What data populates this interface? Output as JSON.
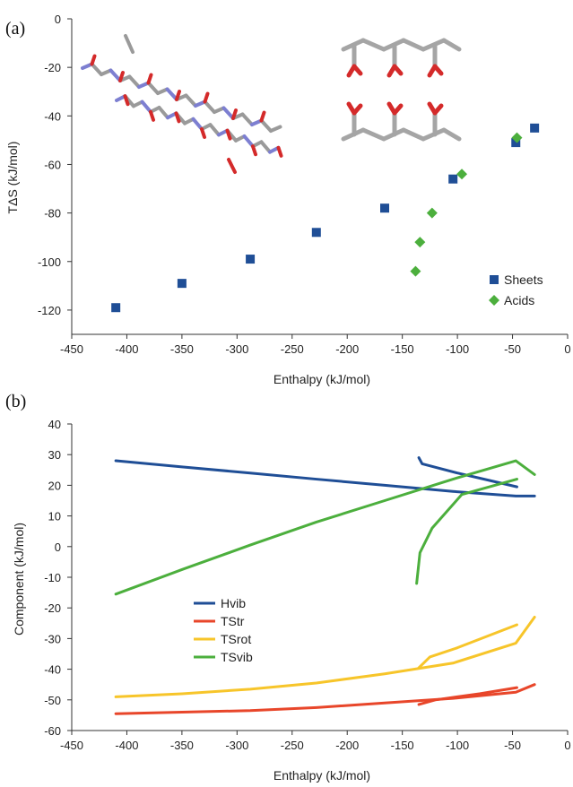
{
  "panels": [
    {
      "label": "(a)",
      "chart_data": {
        "type": "scatter",
        "title": "",
        "xlabel": "Enthalpy (kJ/mol)",
        "ylabel": "TΔS (kJ/mol)",
        "xlim": [
          -450,
          0
        ],
        "ylim": [
          -130,
          0
        ],
        "xticks": [
          -450,
          -400,
          -350,
          -300,
          -250,
          -200,
          -150,
          -100,
          -50,
          0
        ],
        "yticks": [
          0,
          -20,
          -40,
          -60,
          -80,
          -100,
          -120
        ],
        "grid": false,
        "legend_position": "lower-right",
        "series": [
          {
            "name": "Sheets",
            "marker": "square",
            "color": "#1f4e96",
            "points": [
              [
                -410,
                -119
              ],
              [
                -350,
                -109
              ],
              [
                -288,
                -99
              ],
              [
                -228,
                -88
              ],
              [
                -166,
                -78
              ],
              [
                -104,
                -66
              ],
              [
                -47,
                -51
              ],
              [
                -30,
                -45
              ]
            ]
          },
          {
            "name": "Acids",
            "marker": "diamond",
            "color": "#4caf3d",
            "points": [
              [
                -138,
                -104
              ],
              [
                -134,
                -92
              ],
              [
                -123,
                -80
              ],
              [
                -96,
                -64
              ],
              [
                -46,
                -49
              ]
            ]
          }
        ]
      }
    },
    {
      "label": "(b)",
      "chart_data": {
        "type": "line",
        "title": "",
        "xlabel": "Enthalpy (kJ/mol)",
        "ylabel": "Component (kJ/mol)",
        "xlim": [
          -450,
          0
        ],
        "ylim": [
          -60,
          40
        ],
        "xticks": [
          -450,
          -400,
          -350,
          -300,
          -250,
          -200,
          -150,
          -100,
          -50,
          0
        ],
        "yticks": [
          40,
          30,
          20,
          10,
          0,
          -10,
          -20,
          -30,
          -40,
          -50,
          -60
        ],
        "grid": false,
        "legend_position": "left-center",
        "series": [
          {
            "name": "Hvib",
            "color": "#1f4e96",
            "lines": [
              [
                [
                  -410,
                  28
                ],
                [
                  -350,
                  26
                ],
                [
                  -288,
                  24
                ],
                [
                  -228,
                  22
                ],
                [
                  -166,
                  20
                ],
                [
                  -104,
                  18
                ],
                [
                  -47,
                  16.5
                ],
                [
                  -30,
                  16.5
                ]
              ],
              [
                [
                  -135,
                  29
                ],
                [
                  -132,
                  27
                ],
                [
                  -100,
                  24
                ],
                [
                  -70,
                  21.5
                ],
                [
                  -46,
                  19.5
                ]
              ]
            ]
          },
          {
            "name": "TStr",
            "color": "#e8462a",
            "lines": [
              [
                [
                  -410,
                  -54.5
                ],
                [
                  -350,
                  -54
                ],
                [
                  -288,
                  -53.5
                ],
                [
                  -228,
                  -52.5
                ],
                [
                  -166,
                  -51
                ],
                [
                  -104,
                  -49.5
                ],
                [
                  -47,
                  -47.5
                ],
                [
                  -30,
                  -45
                ]
              ],
              [
                [
                  -135,
                  -51.5
                ],
                [
                  -120,
                  -50
                ],
                [
                  -80,
                  -48
                ],
                [
                  -46,
                  -46
                ]
              ]
            ]
          },
          {
            "name": "TSrot",
            "color": "#f7c52a",
            "lines": [
              [
                [
                  -410,
                  -49
                ],
                [
                  -350,
                  -48
                ],
                [
                  -288,
                  -46.5
                ],
                [
                  -228,
                  -44.5
                ],
                [
                  -166,
                  -41.5
                ],
                [
                  -104,
                  -38
                ],
                [
                  -47,
                  -31.5
                ],
                [
                  -30,
                  -23
                ]
              ],
              [
                [
                  -135,
                  -39.5
                ],
                [
                  -125,
                  -36
                ],
                [
                  -100,
                  -33
                ],
                [
                  -46,
                  -25.5
                ]
              ]
            ]
          },
          {
            "name": "TSvib",
            "color": "#4caf3d",
            "lines": [
              [
                [
                  -410,
                  -15.5
                ],
                [
                  -350,
                  -7.5
                ],
                [
                  -288,
                  0.5
                ],
                [
                  -228,
                  8
                ],
                [
                  -166,
                  15
                ],
                [
                  -104,
                  22
                ],
                [
                  -47,
                  28
                ],
                [
                  -30,
                  23.5
                ]
              ],
              [
                [
                  -137,
                  -12
                ],
                [
                  -134,
                  -2
                ],
                [
                  -123,
                  6
                ],
                [
                  -96,
                  17
                ],
                [
                  -46,
                  22
                ]
              ]
            ]
          }
        ]
      }
    }
  ],
  "colors": {
    "sheets": "#1f4e96",
    "acids": "#4caf3d",
    "hvib": "#1f4e96",
    "tstr": "#e8462a",
    "tsrot": "#f7c52a",
    "tsvib": "#4caf3d"
  },
  "insets": [
    "beta-sheet-molecule-image",
    "acid-chain-molecule-image"
  ]
}
